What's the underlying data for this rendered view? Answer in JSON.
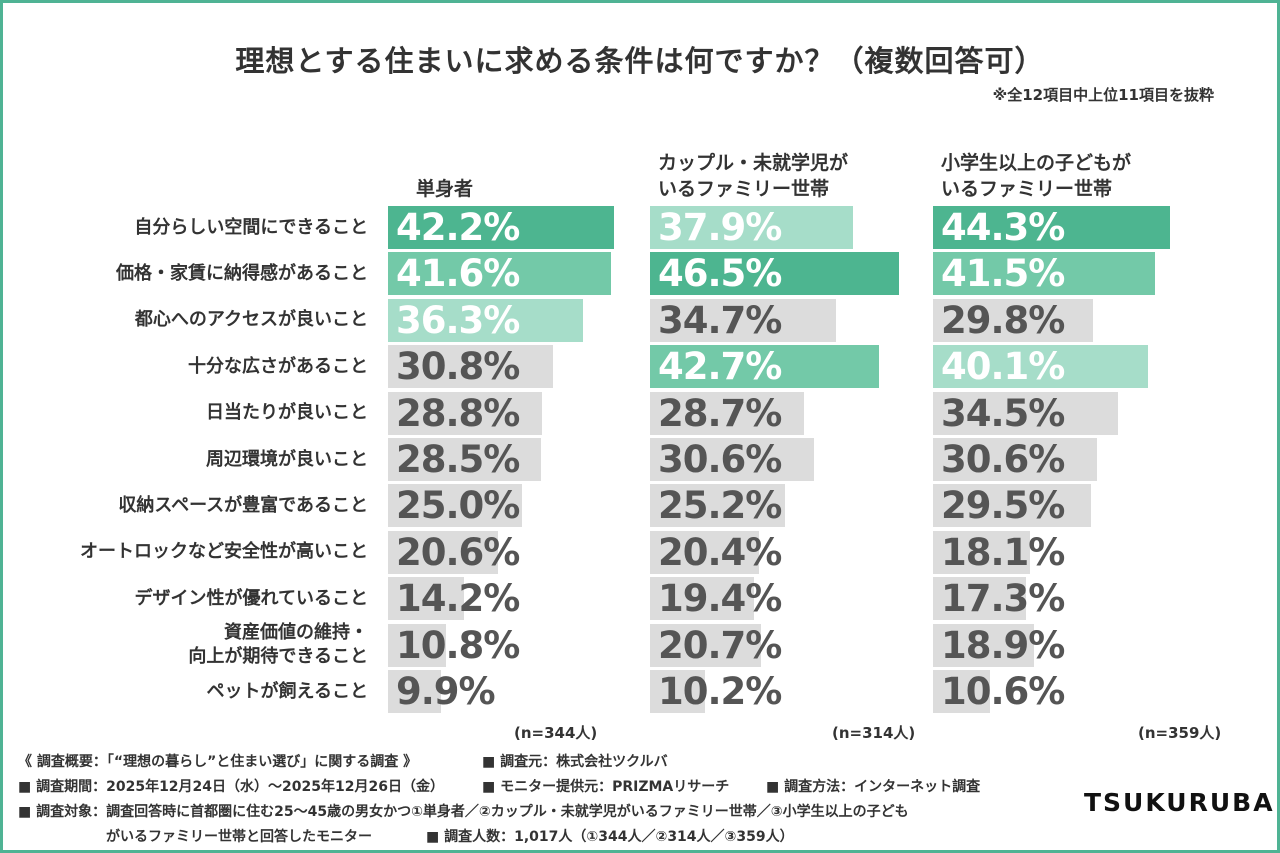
{
  "title": "理想とする住まいに求める条件は何ですか？（複数回答可）",
  "note": "※全12項目中上位11項目を抜粋",
  "colors": {
    "border": "#4fb394",
    "top1": "#4db590",
    "top2": "#73c9a8",
    "top3": "#a6ddc9",
    "other": "#dcdcdc",
    "text_light": "#ffffff",
    "text_dark": "#555555"
  },
  "chart_data": {
    "type": "bar",
    "categories": [
      "自分らしい空間にできること",
      "価格・家賃に納得感があること",
      "都心へのアクセスが良いこと",
      "十分な広さがあること",
      "日当たりが良いこと",
      "周辺環境が良いこと",
      "収納スペースが豊富であること",
      "オートロックなど安全性が高いこと",
      "デザイン性が優れていること",
      "資産価値の維持・\n向上が期待できること",
      "ペットが飼えること"
    ],
    "unit": "%",
    "xlim": [
      0,
      50
    ],
    "series": [
      {
        "name": "単身者",
        "n": "(n=344人)",
        "values": [
          42.2,
          41.6,
          36.3,
          30.8,
          28.8,
          28.5,
          25.0,
          20.6,
          14.2,
          10.8,
          9.9
        ],
        "labels": [
          "42.2%",
          "41.6%",
          "36.3%",
          "30.8%",
          "28.8%",
          "28.5%",
          "25.0%",
          "20.6%",
          "14.2%",
          "10.8%",
          "9.9%"
        ],
        "rank": [
          1,
          2,
          3,
          0,
          0,
          0,
          0,
          0,
          0,
          0,
          0
        ]
      },
      {
        "name": "カップル・未就学児が\nいるファミリー世帯",
        "n": "(n=314人)",
        "values": [
          37.9,
          46.5,
          34.7,
          42.7,
          28.7,
          30.6,
          25.2,
          20.4,
          19.4,
          20.7,
          10.2
        ],
        "labels": [
          "37.9%",
          "46.5%",
          "34.7%",
          "42.7%",
          "28.7%",
          "30.6%",
          "25.2%",
          "20.4%",
          "19.4%",
          "20.7%",
          "10.2%"
        ],
        "rank": [
          3,
          1,
          0,
          2,
          0,
          0,
          0,
          0,
          0,
          0,
          0
        ]
      },
      {
        "name": "小学生以上の子どもが\nいるファミリー世帯",
        "n": "(n=359人)",
        "values": [
          44.3,
          41.5,
          29.8,
          40.1,
          34.5,
          30.6,
          29.5,
          18.1,
          17.3,
          18.9,
          10.6
        ],
        "labels": [
          "44.3%",
          "41.5%",
          "29.8%",
          "40.1%",
          "34.5%",
          "30.6%",
          "29.5%",
          "18.1%",
          "17.3%",
          "18.9%",
          "10.6%"
        ],
        "rank": [
          1,
          2,
          0,
          3,
          0,
          0,
          0,
          0,
          0,
          0,
          0
        ]
      }
    ]
  },
  "footer": {
    "line1a": "《 調査概要：「“理想の暮らし”と住まい選び」に関する調査 》",
    "line1b": "■ 調査元：株式会社ツクルバ",
    "line2a": "■ 調査期間：2025年12月24日（水）〜2025年12月26日（金）",
    "line2b": "■ モニター提供元：PRIZMAリサーチ",
    "line2c": "■ 調査方法：インターネット調査",
    "line3": "■ 調査対象：調査回答時に首都圏に住む25〜45歳の男女かつ①単身者／②カップル・未就学児がいるファミリー世帯／③小学生以上の子ども",
    "line4a": "がいるファミリー世帯と回答したモニター",
    "line4b": "■ 調査人数：1,017人（①344人／②314人／③359人）"
  },
  "logo": "TSUKURUBA"
}
